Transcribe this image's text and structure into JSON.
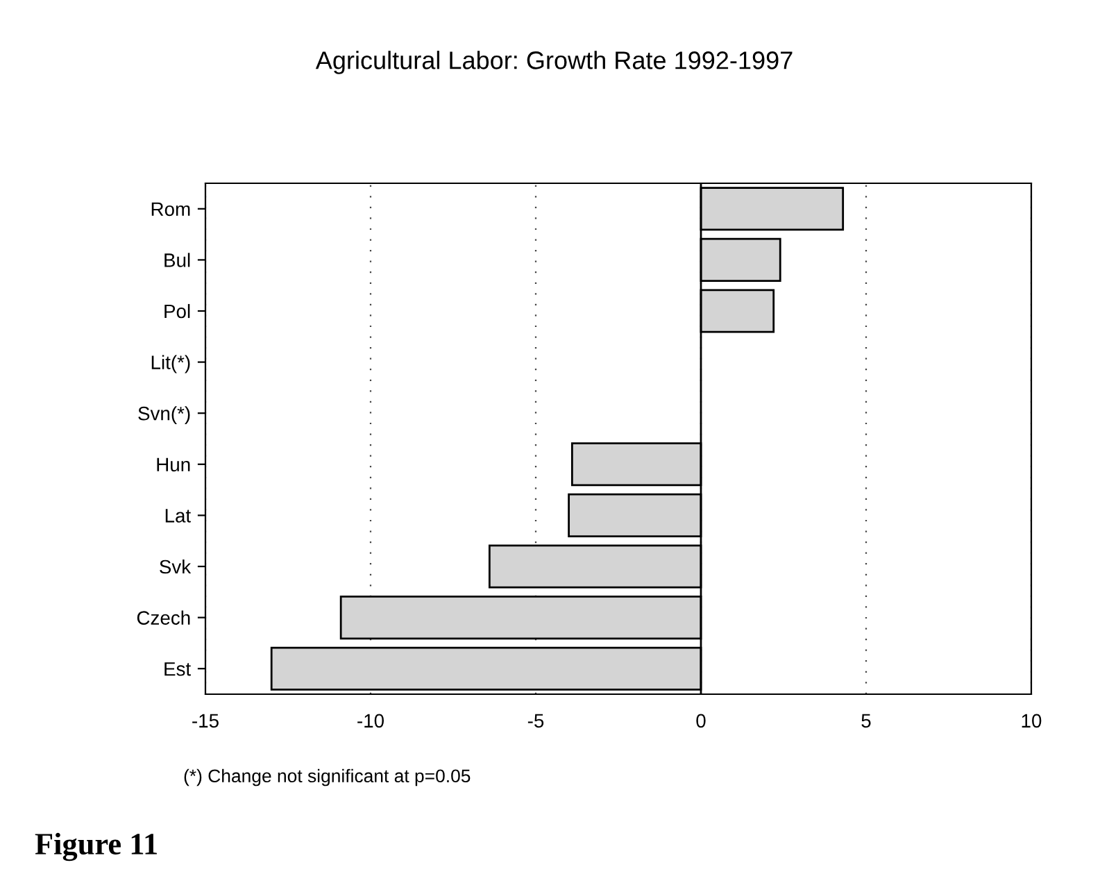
{
  "chart_data": {
    "type": "bar",
    "orientation": "horizontal",
    "title": "Agricultural Labor: Growth Rate 1992-1997",
    "categories": [
      "Rom",
      "Bul",
      "Pol",
      "Lit(*)",
      "Svn(*)",
      "Hun",
      "Lat",
      "Svk",
      "Czech",
      "Est"
    ],
    "values": [
      4.3,
      2.4,
      2.2,
      null,
      null,
      -3.9,
      -4.0,
      -6.4,
      -10.9,
      -13.0
    ],
    "color": "#d4d4d4",
    "xlim": [
      -15,
      10
    ],
    "xticks": [
      -15,
      -10,
      -5,
      0,
      5,
      10
    ],
    "grid": "x",
    "ref_lines": [
      {
        "axis": "x",
        "value": 0,
        "color": "#000000",
        "line_style": "solid"
      }
    ],
    "annotations": [
      "(*) Change not significant at p=0.05",
      "Figure 11"
    ]
  }
}
